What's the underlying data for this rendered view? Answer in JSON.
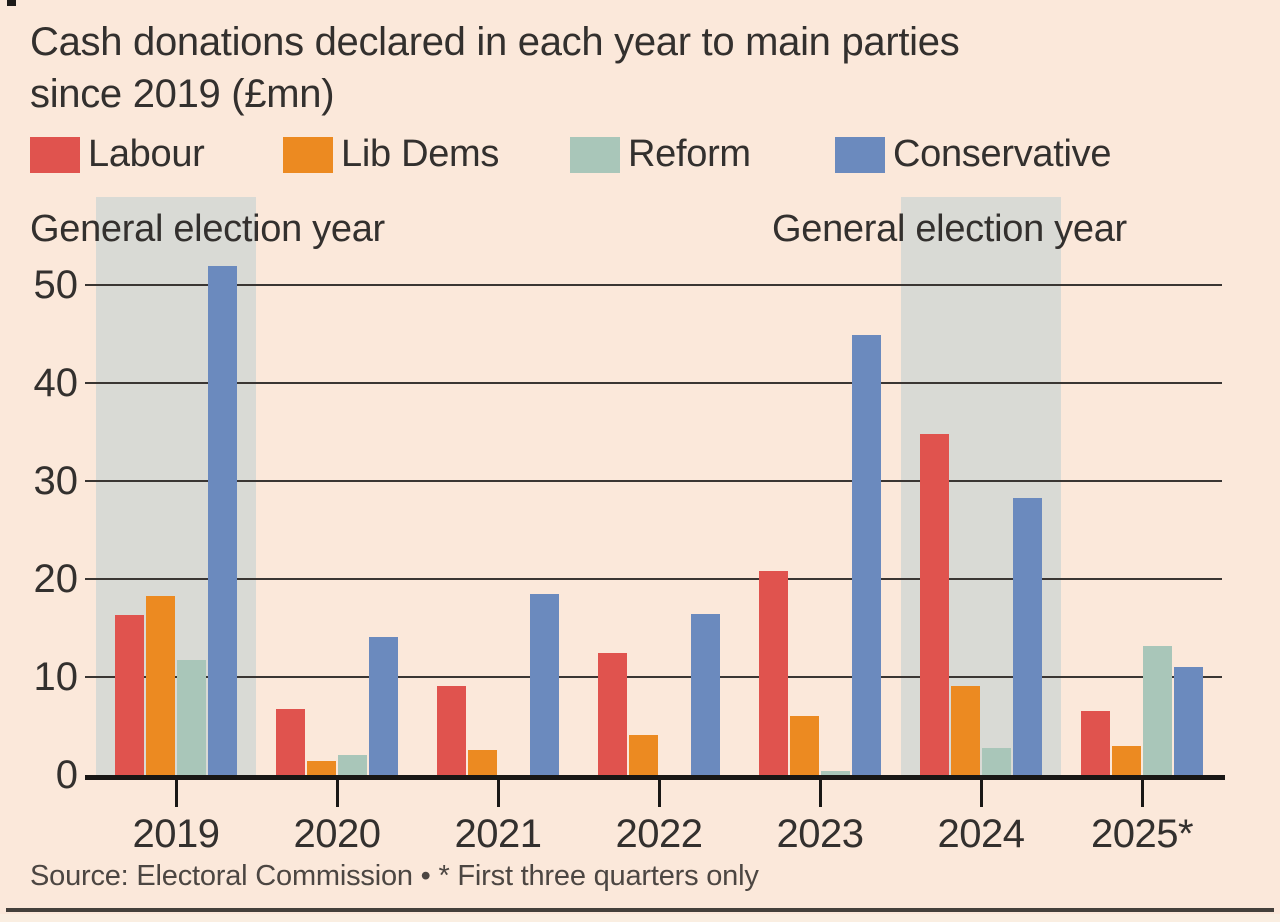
{
  "title": {
    "line1": "Cash donations declared in each year to main parties",
    "line2": "since 2019 (£mn)"
  },
  "legend": {
    "items": [
      {
        "label": "Labour",
        "color": "#e0534e"
      },
      {
        "label": "Lib Dems",
        "color": "#ec8a21"
      },
      {
        "label": "Reform",
        "color": "#a9c6b9"
      },
      {
        "label": "Conservative",
        "color": "#6b8abe"
      }
    ]
  },
  "annotations": {
    "left_band_label": "General election year",
    "right_band_label": "General election year"
  },
  "chart_data": {
    "type": "bar",
    "title": "Cash donations declared in each year to main parties since 2019 (£mn)",
    "categories": [
      "2019",
      "2020",
      "2021",
      "2022",
      "2023",
      "2024",
      "2025*"
    ],
    "series": [
      {
        "name": "Labour",
        "color": "#e0534e",
        "values": [
          16.3,
          6.7,
          9.1,
          12.5,
          20.8,
          34.8,
          6.5
        ]
      },
      {
        "name": "Lib Dems",
        "color": "#ec8a21",
        "values": [
          18.3,
          1.4,
          2.6,
          4.1,
          6.0,
          9.1,
          3.0
        ]
      },
      {
        "name": "Reform",
        "color": "#a9c6b9",
        "values": [
          11.7,
          2.0,
          0,
          0,
          0.4,
          2.8,
          13.2
        ]
      },
      {
        "name": "Conservative",
        "color": "#6b8abe",
        "values": [
          51.9,
          14.1,
          18.5,
          16.4,
          44.9,
          28.3,
          11.0
        ]
      }
    ],
    "yticks": [
      0,
      10,
      20,
      30,
      40,
      50
    ],
    "ylim": [
      0,
      53
    ],
    "xlabel": "",
    "ylabel": "£mn",
    "grid": true,
    "legend_position": "top",
    "election_year_band_indices": [
      0,
      5
    ],
    "band_color": "#d9dad5",
    "band_label": "General election year"
  },
  "source": "Source: Electoral Commission • * First three quarters only",
  "colors": {
    "background": "#fbe8da",
    "text": "#33302e",
    "gridline": "#3a3633",
    "axis": "#191715",
    "band": "#d9dad5",
    "source_text": "#4c4642",
    "bottom_rule": "#44403b"
  }
}
